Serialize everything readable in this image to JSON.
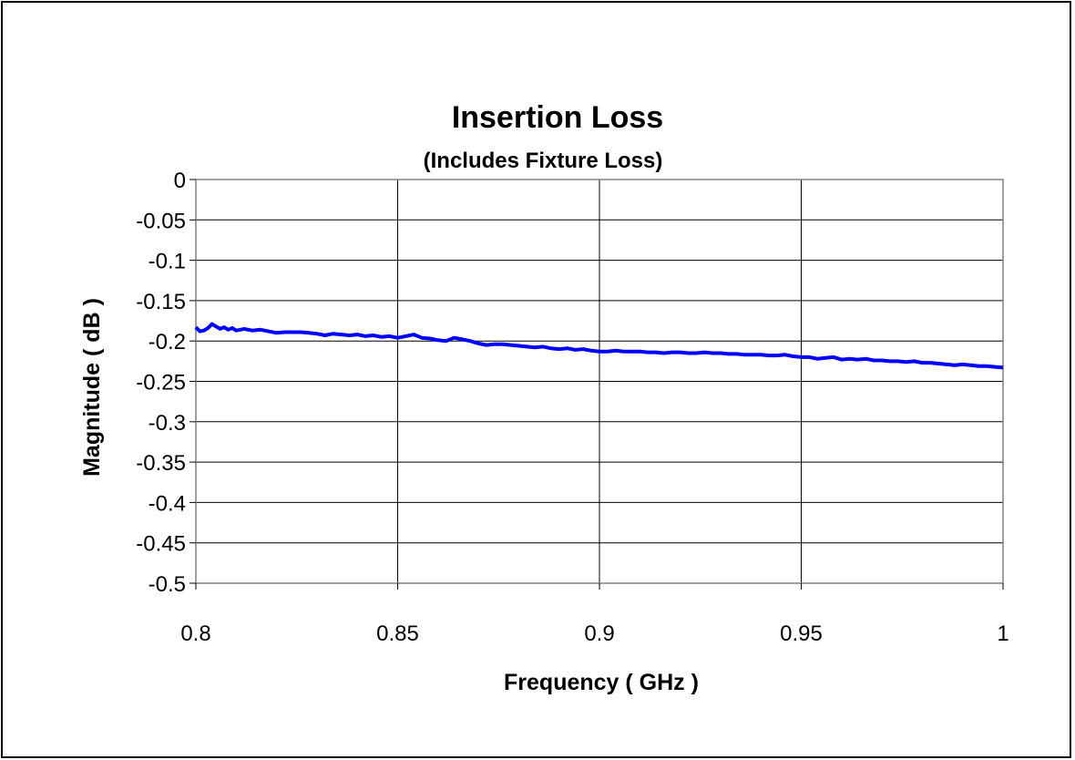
{
  "chart_data": {
    "type": "line",
    "title": "Insertion Loss",
    "subtitle": "(Includes Fixture Loss)",
    "xlabel": "Frequency ( GHz )",
    "ylabel": "Magnitude ( dB )",
    "xlim": [
      0.8,
      1.0
    ],
    "ylim": [
      -0.5,
      0
    ],
    "xticks": [
      "0.8",
      "0.85",
      "0.9",
      "0.95",
      "1"
    ],
    "yticks": [
      "0",
      "-0.05",
      "-0.1",
      "-0.15",
      "-0.2",
      "-0.25",
      "-0.3",
      "-0.35",
      "-0.4",
      "-0.45",
      "-0.5"
    ],
    "grid": true,
    "legend": "none",
    "line_color": "#0000ff",
    "series": [
      {
        "x": [
          0.8,
          0.801,
          0.802,
          0.803,
          0.804,
          0.805,
          0.806,
          0.807,
          0.808,
          0.809,
          0.81,
          0.812,
          0.814,
          0.816,
          0.818,
          0.82,
          0.822,
          0.824,
          0.826,
          0.828,
          0.83,
          0.832,
          0.834,
          0.836,
          0.838,
          0.84,
          0.842,
          0.844,
          0.846,
          0.848,
          0.85,
          0.852,
          0.854,
          0.856,
          0.858,
          0.86,
          0.862,
          0.864,
          0.866,
          0.868,
          0.87,
          0.872,
          0.874,
          0.876,
          0.878,
          0.88,
          0.882,
          0.884,
          0.886,
          0.888,
          0.89,
          0.892,
          0.894,
          0.896,
          0.898,
          0.9,
          0.902,
          0.904,
          0.906,
          0.908,
          0.91,
          0.912,
          0.914,
          0.916,
          0.918,
          0.92,
          0.922,
          0.924,
          0.926,
          0.928,
          0.93,
          0.932,
          0.934,
          0.936,
          0.938,
          0.94,
          0.942,
          0.944,
          0.946,
          0.948,
          0.95,
          0.952,
          0.954,
          0.956,
          0.958,
          0.96,
          0.962,
          0.964,
          0.966,
          0.968,
          0.97,
          0.972,
          0.974,
          0.976,
          0.978,
          0.98,
          0.982,
          0.984,
          0.986,
          0.988,
          0.99,
          0.992,
          0.994,
          0.996,
          0.998,
          1.0
        ],
        "values": [
          -0.183,
          -0.188,
          -0.187,
          -0.184,
          -0.179,
          -0.182,
          -0.185,
          -0.183,
          -0.186,
          -0.184,
          -0.187,
          -0.185,
          -0.187,
          -0.186,
          -0.188,
          -0.19,
          -0.189,
          -0.189,
          -0.189,
          -0.19,
          -0.191,
          -0.193,
          -0.191,
          -0.192,
          -0.193,
          -0.192,
          -0.194,
          -0.193,
          -0.195,
          -0.194,
          -0.196,
          -0.194,
          -0.192,
          -0.196,
          -0.197,
          -0.199,
          -0.2,
          -0.196,
          -0.198,
          -0.2,
          -0.203,
          -0.205,
          -0.204,
          -0.204,
          -0.205,
          -0.206,
          -0.207,
          -0.208,
          -0.207,
          -0.209,
          -0.21,
          -0.209,
          -0.211,
          -0.21,
          -0.212,
          -0.213,
          -0.213,
          -0.212,
          -0.213,
          -0.213,
          -0.213,
          -0.214,
          -0.214,
          -0.215,
          -0.214,
          -0.214,
          -0.215,
          -0.215,
          -0.214,
          -0.215,
          -0.215,
          -0.216,
          -0.216,
          -0.217,
          -0.217,
          -0.217,
          -0.218,
          -0.218,
          -0.217,
          -0.219,
          -0.22,
          -0.22,
          -0.222,
          -0.221,
          -0.22,
          -0.223,
          -0.222,
          -0.223,
          -0.222,
          -0.224,
          -0.224,
          -0.225,
          -0.225,
          -0.226,
          -0.225,
          -0.227,
          -0.227,
          -0.228,
          -0.229,
          -0.23,
          -0.229,
          -0.23,
          -0.231,
          -0.231,
          -0.232,
          -0.233
        ]
      }
    ]
  }
}
